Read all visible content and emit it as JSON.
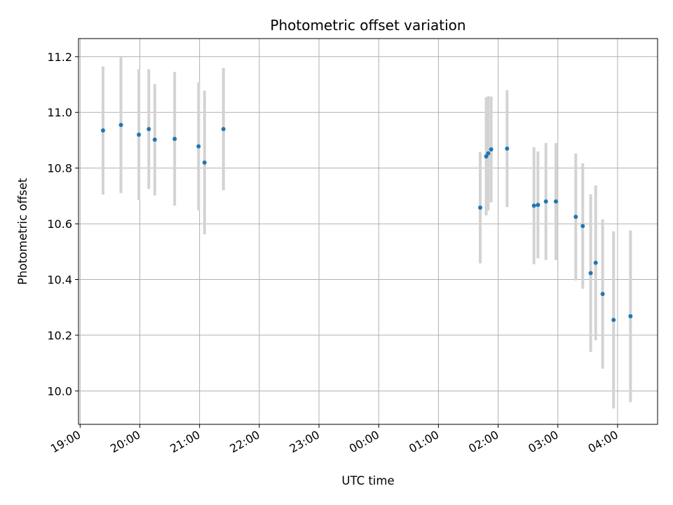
{
  "chart_data": {
    "type": "scatter",
    "title": "Photometric offset variation",
    "xlabel": "UTC time",
    "ylabel": "Photometric offset",
    "x_tick_labels": [
      "19:00",
      "20:00",
      "21:00",
      "22:00",
      "23:00",
      "00:00",
      "01:00",
      "02:00",
      "03:00",
      "04:00"
    ],
    "y_tick_labels": [
      "10.0",
      "10.2",
      "10.4",
      "10.6",
      "10.8",
      "11.0",
      "11.2"
    ],
    "x_range_hours": [
      18.973,
      28.67
    ],
    "ylim": [
      9.88,
      11.265
    ],
    "grid": true,
    "point_color": "#1f77b4",
    "errorbar_color": "#d3d3d3",
    "points": [
      {
        "time": "19:23",
        "value": 10.935,
        "error": 0.23
      },
      {
        "time": "19:41",
        "value": 10.955,
        "error": 0.245
      },
      {
        "time": "19:59",
        "value": 10.92,
        "error": 0.235
      },
      {
        "time": "20:09",
        "value": 10.94,
        "error": 0.215
      },
      {
        "time": "20:15",
        "value": 10.902,
        "error": 0.2
      },
      {
        "time": "20:35",
        "value": 10.905,
        "error": 0.24
      },
      {
        "time": "20:59",
        "value": 10.878,
        "error": 0.23
      },
      {
        "time": "21:05",
        "value": 10.82,
        "error": 0.258
      },
      {
        "time": "21:24",
        "value": 10.94,
        "error": 0.22
      },
      {
        "time": "01:42",
        "value": 10.658,
        "error": 0.2
      },
      {
        "time": "01:48",
        "value": 10.842,
        "error": 0.212
      },
      {
        "time": "01:50",
        "value": 10.853,
        "error": 0.205
      },
      {
        "time": "01:53",
        "value": 10.867,
        "error": 0.19
      },
      {
        "time": "02:09",
        "value": 10.87,
        "error": 0.21
      },
      {
        "time": "02:36",
        "value": 10.665,
        "error": 0.21
      },
      {
        "time": "02:40",
        "value": 10.668,
        "error": 0.192
      },
      {
        "time": "02:48",
        "value": 10.68,
        "error": 0.21
      },
      {
        "time": "02:58",
        "value": 10.68,
        "error": 0.21
      },
      {
        "time": "03:18",
        "value": 10.625,
        "error": 0.228
      },
      {
        "time": "03:25",
        "value": 10.592,
        "error": 0.225
      },
      {
        "time": "03:33",
        "value": 10.423,
        "error": 0.283
      },
      {
        "time": "03:38",
        "value": 10.46,
        "error": 0.278
      },
      {
        "time": "03:45",
        "value": 10.348,
        "error": 0.268
      },
      {
        "time": "03:56",
        "value": 10.255,
        "error": 0.318
      },
      {
        "time": "04:13",
        "value": 10.268,
        "error": 0.308
      }
    ]
  }
}
